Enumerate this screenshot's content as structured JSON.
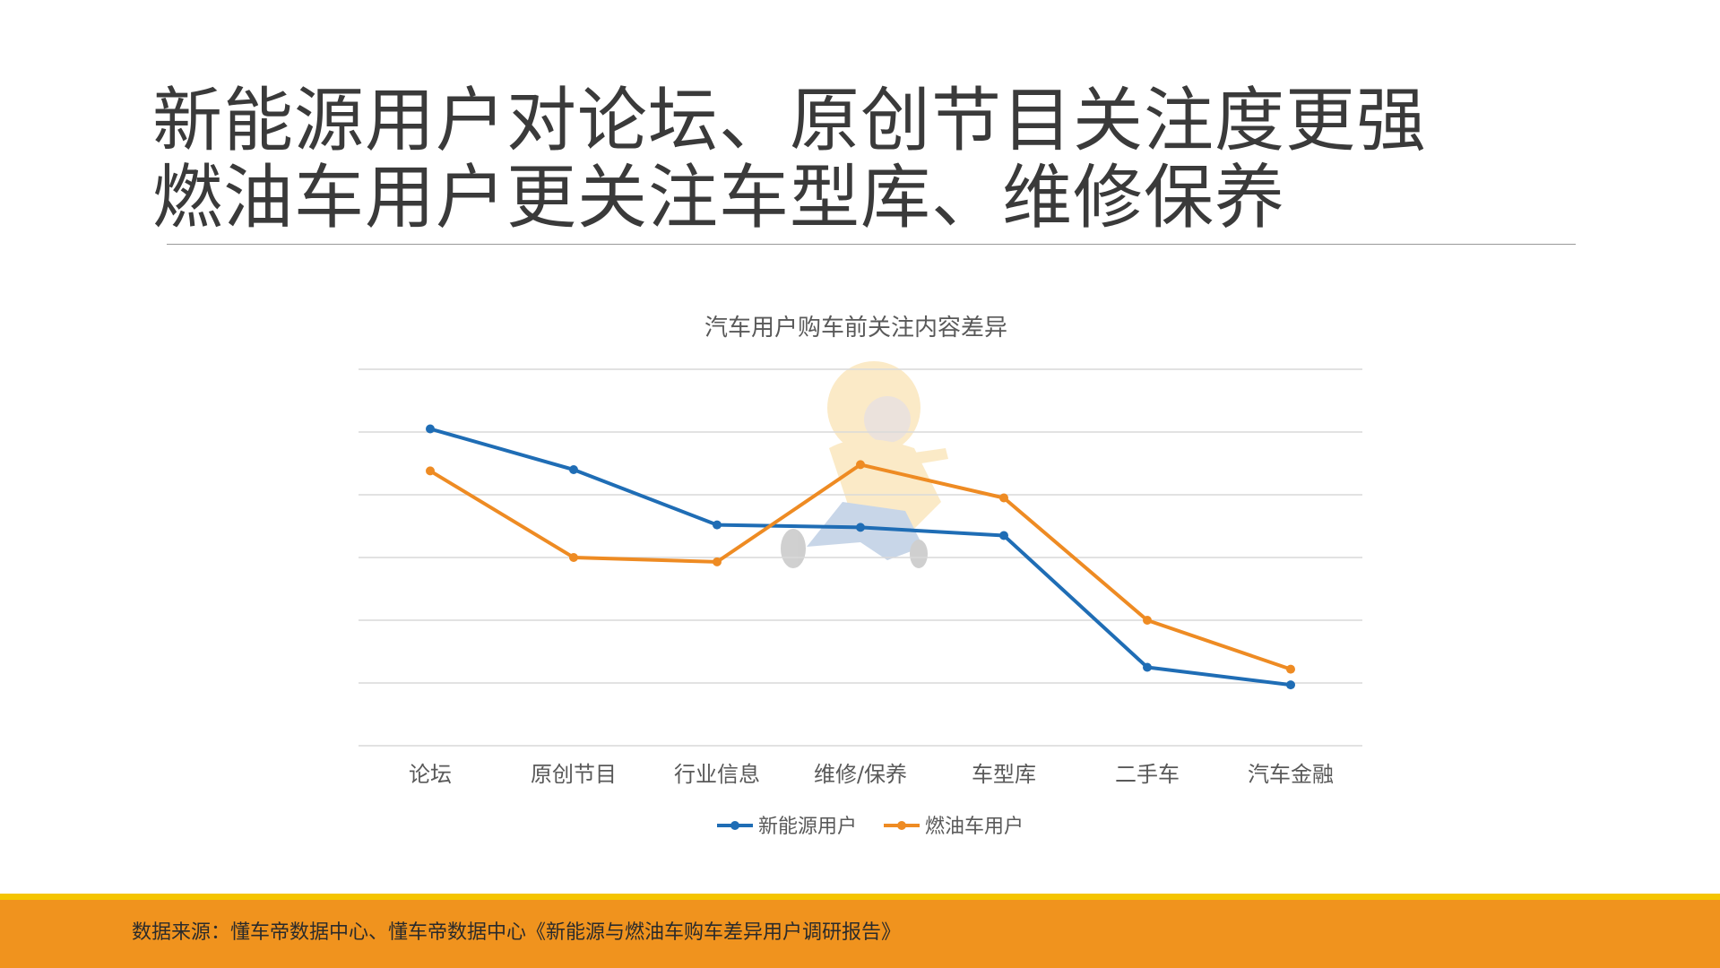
{
  "headline": {
    "line1": "新能源用户对论坛、原创节目关注度更强",
    "line2": "燃油车用户更关注车型库、维修保养"
  },
  "colors": {
    "new_energy": "#1f6db5",
    "fuel": "#ee8b23",
    "grid": "#d9d9d9",
    "footer_bar": "#f0931e",
    "footer_line": "#f5c400"
  },
  "chart_data": {
    "type": "line",
    "title": "汽车用户购车前关注内容差异",
    "categories": [
      "论坛",
      "原创节目",
      "行业信息",
      "维修/保养",
      "车型库",
      "二手车",
      "汽车金融"
    ],
    "series": [
      {
        "name": "新能源用户",
        "values": [
          5.05,
          4.4,
          3.52,
          3.48,
          3.35,
          1.25,
          0.97
        ]
      },
      {
        "name": "燃油车用户",
        "values": [
          4.38,
          3.0,
          2.93,
          4.48,
          3.95,
          2.0,
          1.22
        ]
      }
    ],
    "ylim": [
      0,
      6
    ],
    "grid": true,
    "xlabel": "",
    "ylabel": "",
    "legend": "bottom-center"
  },
  "footer": {
    "source": "数据来源：懂车帝数据中心、懂车帝数据中心《新能源与燃油车购车差异用户调研报告》"
  }
}
